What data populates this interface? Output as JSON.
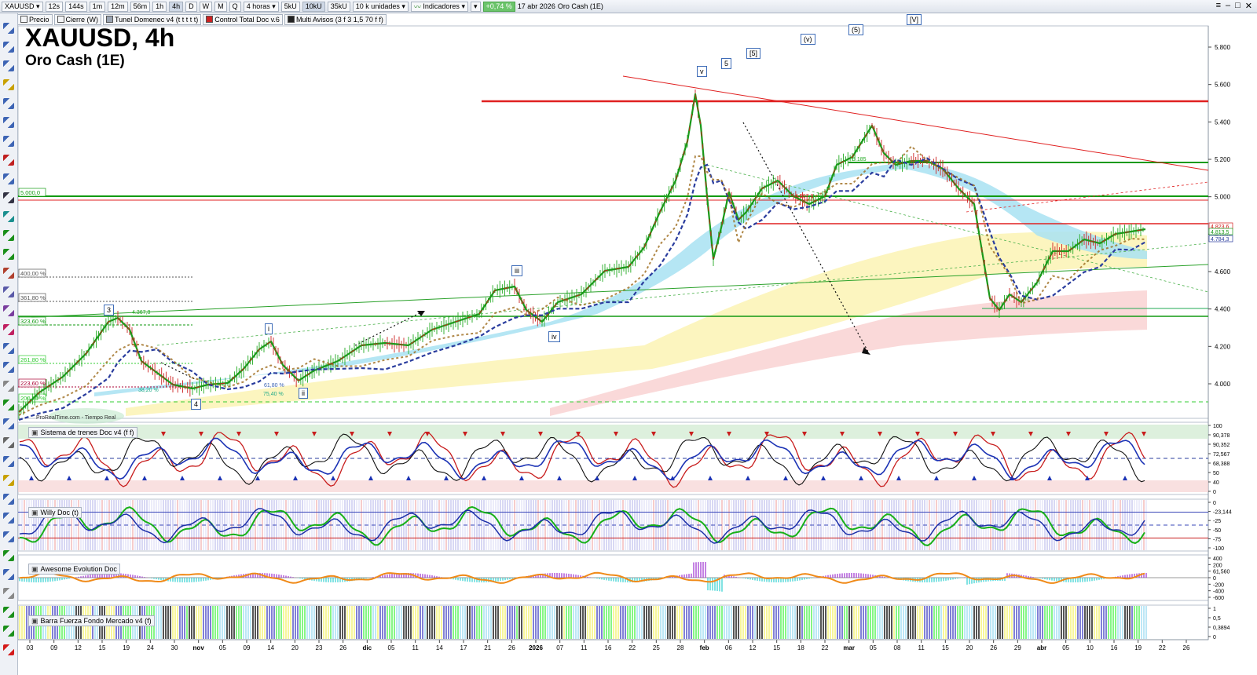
{
  "toolbar": {
    "symbol": "XAUUSD",
    "timeframes": [
      "12s",
      "144s",
      "1m",
      "12m",
      "56m",
      "1h",
      "4h",
      "D",
      "W",
      "M",
      "Q"
    ],
    "active_timeframe": "4h",
    "period": "4 horas",
    "volumes": [
      "5kU",
      "10kU",
      "35kU"
    ],
    "active_volume": "10kU",
    "units": "10 k unidades",
    "indicators": "Indicadores",
    "change": "+0,74 %",
    "date": "17 abr 2026",
    "instrument": "Oro Cash (1E)"
  },
  "indicator_legend": [
    {
      "label": "Precio",
      "color": "#ffffff"
    },
    {
      "label": "Cierre (W)",
      "color": "#ffffff"
    },
    {
      "label": "Tunel Domenec v4 (t t t t t)",
      "color": "#9aa4b2"
    },
    {
      "label": "Control Total Doc v.6",
      "color": "#cc2222"
    },
    {
      "label": "Multi Avisos (3 f 3 1,5 70 f f)",
      "color": "#222222"
    }
  ],
  "chart": {
    "title": "XAUUSD, 4h",
    "subtitle": "Oro Cash (1E)",
    "y_ticks": [
      "5.800",
      "5.600",
      "5.400",
      "5.200",
      "5.000",
      "4.800",
      "4.600",
      "4.400",
      "4.200",
      "4.000"
    ],
    "price_labels": [
      "4.823,6",
      "4.813,5",
      "4.784,3"
    ],
    "fib_labels": [
      "5.000,0",
      "400,00 %",
      "361,80 %",
      "323,60 %",
      "261,80 %",
      "223,60 %",
      "200,00 %"
    ],
    "small_labels": [
      "4.367,8",
      "5.185",
      "4.987,8",
      "38,20 %",
      "61,80 %",
      "75,40 %"
    ],
    "watermark": "ProRealTime.com - Tiempo Real",
    "wave_labels": [
      "3",
      "4",
      "i",
      "ii",
      "iii",
      "iv",
      "v",
      "5",
      "[5]",
      "(v)",
      "(5)",
      "[V]"
    ]
  },
  "panels": [
    {
      "name": "Sistema de trenes Doc v4 (f f)",
      "ticks": [
        "100",
        "90,378",
        "90,352",
        "72,567",
        "68,388",
        "50",
        "40",
        "0"
      ]
    },
    {
      "name": "Willy Doc (t)",
      "ticks": [
        "0",
        "-23,144",
        "-25",
        "-50",
        "-75",
        "-100"
      ]
    },
    {
      "name": "Awesome Evolution Doc",
      "ticks": [
        "400",
        "200",
        "61,560",
        "0",
        "-200",
        "-400",
        "-600"
      ]
    },
    {
      "name": "Barra Fuerza Fondo Mercado v4 (f)",
      "ticks": [
        "1",
        "0,5",
        "0,3894",
        "0"
      ]
    }
  ],
  "x_labels": [
    "03",
    "09",
    "12",
    "15",
    "19",
    "24",
    "30",
    "nov",
    "05",
    "09",
    "14",
    "20",
    "23",
    "26",
    "dic",
    "05",
    "11",
    "14",
    "17",
    "21",
    "26",
    "2026",
    "07",
    "11",
    "16",
    "22",
    "25",
    "28",
    "feb",
    "06",
    "12",
    "15",
    "18",
    "22",
    "mar",
    "05",
    "08",
    "11",
    "15",
    "20",
    "26",
    "29",
    "abr",
    "05",
    "10",
    "16",
    "19",
    "22",
    "26"
  ],
  "colors": {
    "up": "#19b219",
    "down": "#d41a1a",
    "accent": "#2a3d9e",
    "resistance": "#e02020",
    "support": "#129a12"
  }
}
